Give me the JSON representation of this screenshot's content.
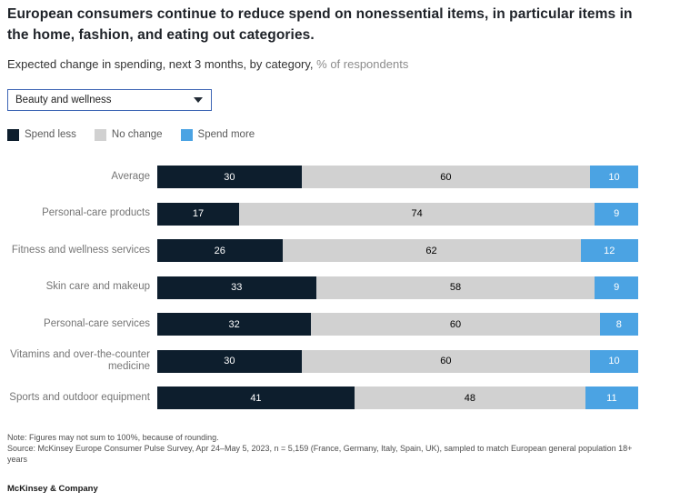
{
  "title": "European consumers continue to reduce spend on nonessential items, in particular items in the home, fashion, and eating out categories.",
  "subtitle": {
    "main": "Expected change in spending, next 3 months, by category,",
    "unit": " % of respondents"
  },
  "dropdown": {
    "value": "Beauty and wellness"
  },
  "legend": [
    {
      "label": "Spend less",
      "color": "#0d1e2d"
    },
    {
      "label": "No change",
      "color": "#d1d1d1"
    },
    {
      "label": "Spend more",
      "color": "#4ba3e3"
    }
  ],
  "chart_data": {
    "type": "bar",
    "orientation": "horizontal",
    "stacked": true,
    "xlim": [
      0,
      100
    ],
    "value_labels": "inside",
    "categories": [
      "Average",
      "Personal-care products",
      "Fitness and wellness services",
      "Skin care and makeup",
      "Personal-care services",
      "Vitamins and over-the-counter medicine",
      "Sports and outdoor equipment"
    ],
    "series": [
      {
        "name": "Spend less",
        "color": "#0d1e2d",
        "text_color": "#ffffff",
        "values": [
          30,
          17,
          26,
          33,
          32,
          30,
          41
        ]
      },
      {
        "name": "No change",
        "color": "#d1d1d1",
        "text_color": "#000000",
        "values": [
          60,
          74,
          62,
          58,
          60,
          60,
          48
        ]
      },
      {
        "name": "Spend more",
        "color": "#4ba3e3",
        "text_color": "#ffffff",
        "values": [
          10,
          9,
          12,
          9,
          8,
          10,
          11
        ]
      }
    ]
  },
  "notes": {
    "note": "Note: Figures may not sum to 100%, because of rounding.",
    "source": "Source: McKinsey Europe Consumer Pulse Survey, Apr 24–May 5, 2023, n = 5,159 (France, Germany, Italy, Spain, UK), sampled to match European general population 18+ years"
  },
  "footer": {
    "brand": "McKinsey & Company"
  }
}
